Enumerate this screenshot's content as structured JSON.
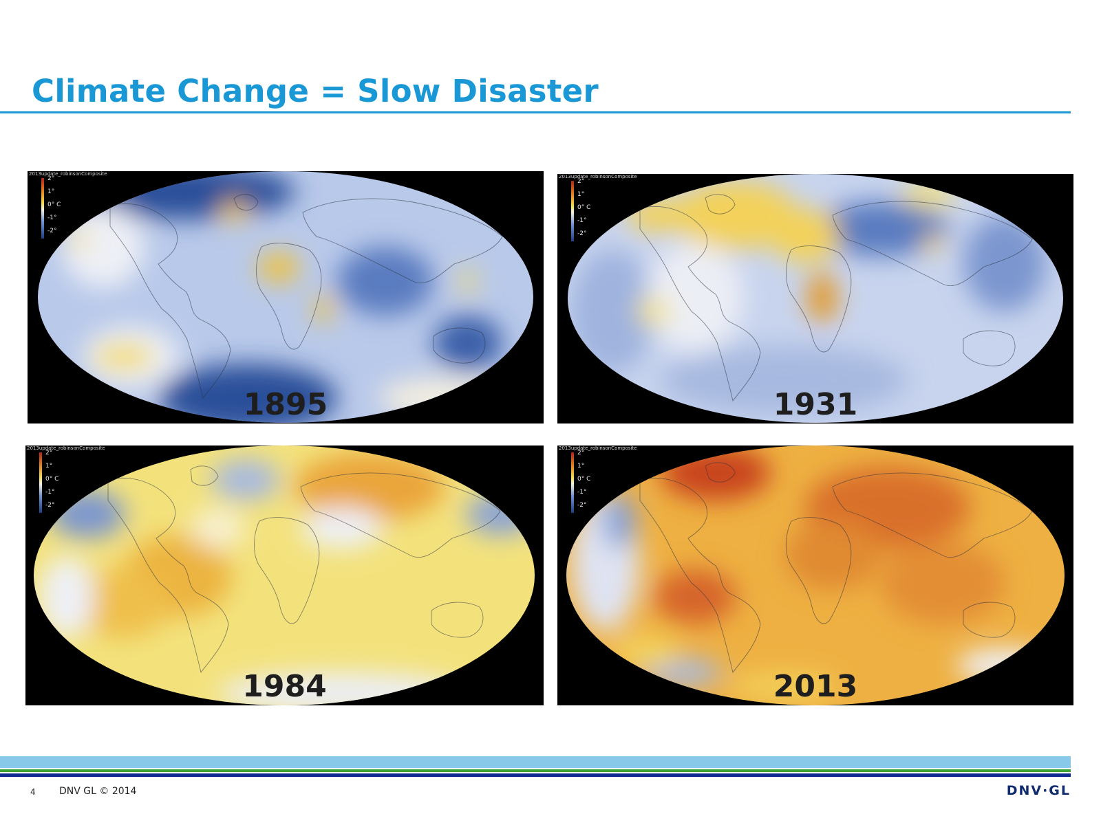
{
  "slide": {
    "title": "Climate Change = Slow Disaster"
  },
  "maps": [
    {
      "id": "1895",
      "year": "1895",
      "composite_label": "2013update_robinsonComposite",
      "dominant": "cold",
      "legend": {
        "t1": "2°",
        "t2": "1°",
        "t3": "0° C",
        "t4": "-1°",
        "t5": "-2°"
      }
    },
    {
      "id": "1931",
      "year": "1931",
      "composite_label": "2013update_robinsonComposite",
      "dominant": "mixed",
      "legend": {
        "t1": "2°",
        "t2": "1°",
        "t3": "0° C",
        "t4": "-1°",
        "t5": "-2°"
      }
    },
    {
      "id": "1984",
      "year": "1984",
      "composite_label": "2013update_robinsonComposite",
      "dominant": "warm",
      "legend": {
        "t1": "2°",
        "t2": "1°",
        "t3": "0° C",
        "t4": "-1°",
        "t5": "-2°"
      }
    },
    {
      "id": "2013",
      "year": "2013",
      "composite_label": "2013update_robinsonComposite",
      "dominant": "hot",
      "legend": {
        "t1": "2°",
        "t2": "1°",
        "t3": "0° C",
        "t4": "-1°",
        "t5": "-2°"
      }
    }
  ],
  "colors": {
    "accent": "#1a98d5",
    "band_light": "#88c9ea",
    "band_green": "#3fa535",
    "band_dark": "#0f2b8f"
  },
  "footer": {
    "page_number": "4",
    "copyright": "DNV GL © 2014",
    "logo": "DNV·GL"
  }
}
